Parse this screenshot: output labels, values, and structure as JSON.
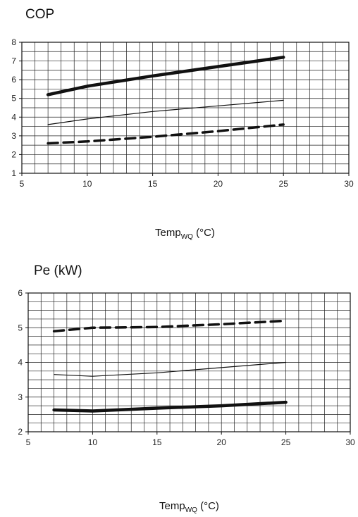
{
  "chart_data": [
    {
      "type": "line",
      "title": "COP",
      "xlabel": "Temp",
      "xlabel_sub": "WQ",
      "xlabel_unit": "(°C)",
      "xlim": [
        5,
        30
      ],
      "ylim": [
        1,
        8
      ],
      "xticks": [
        "5",
        "10",
        "15",
        "20",
        "25",
        "30"
      ],
      "yticks": [
        "1",
        "2",
        "3",
        "4",
        "5",
        "6",
        "7",
        "8"
      ],
      "grid": true,
      "series": [
        {
          "style": "thick",
          "x": [
            7,
            10,
            15,
            20,
            25
          ],
          "y": [
            5.2,
            5.65,
            6.2,
            6.7,
            7.2
          ]
        },
        {
          "style": "thin",
          "x": [
            7,
            10,
            15,
            20,
            25
          ],
          "y": [
            3.6,
            3.9,
            4.3,
            4.6,
            4.9
          ]
        },
        {
          "style": "dashed",
          "x": [
            7,
            10,
            15,
            20,
            25
          ],
          "y": [
            2.6,
            2.7,
            2.95,
            3.25,
            3.6
          ]
        }
      ]
    },
    {
      "type": "line",
      "title": "Pe (kW)",
      "xlabel": "Temp",
      "xlabel_sub": "WQ",
      "xlabel_unit": "(°C)",
      "xlim": [
        5,
        30
      ],
      "ylim": [
        2,
        6
      ],
      "xticks": [
        "5",
        "10",
        "15",
        "20",
        "25",
        "30"
      ],
      "yticks": [
        "2",
        "3",
        "4",
        "5",
        "6"
      ],
      "grid": true,
      "series": [
        {
          "style": "dashed",
          "x": [
            7,
            10,
            15,
            20,
            25
          ],
          "y": [
            4.9,
            5.0,
            5.02,
            5.1,
            5.2
          ]
        },
        {
          "style": "thin",
          "x": [
            7,
            10,
            15,
            20,
            25
          ],
          "y": [
            3.65,
            3.6,
            3.7,
            3.85,
            4.0
          ]
        },
        {
          "style": "thick",
          "x": [
            7,
            10,
            15,
            20,
            25
          ],
          "y": [
            2.63,
            2.6,
            2.68,
            2.75,
            2.85
          ]
        }
      ]
    }
  ]
}
